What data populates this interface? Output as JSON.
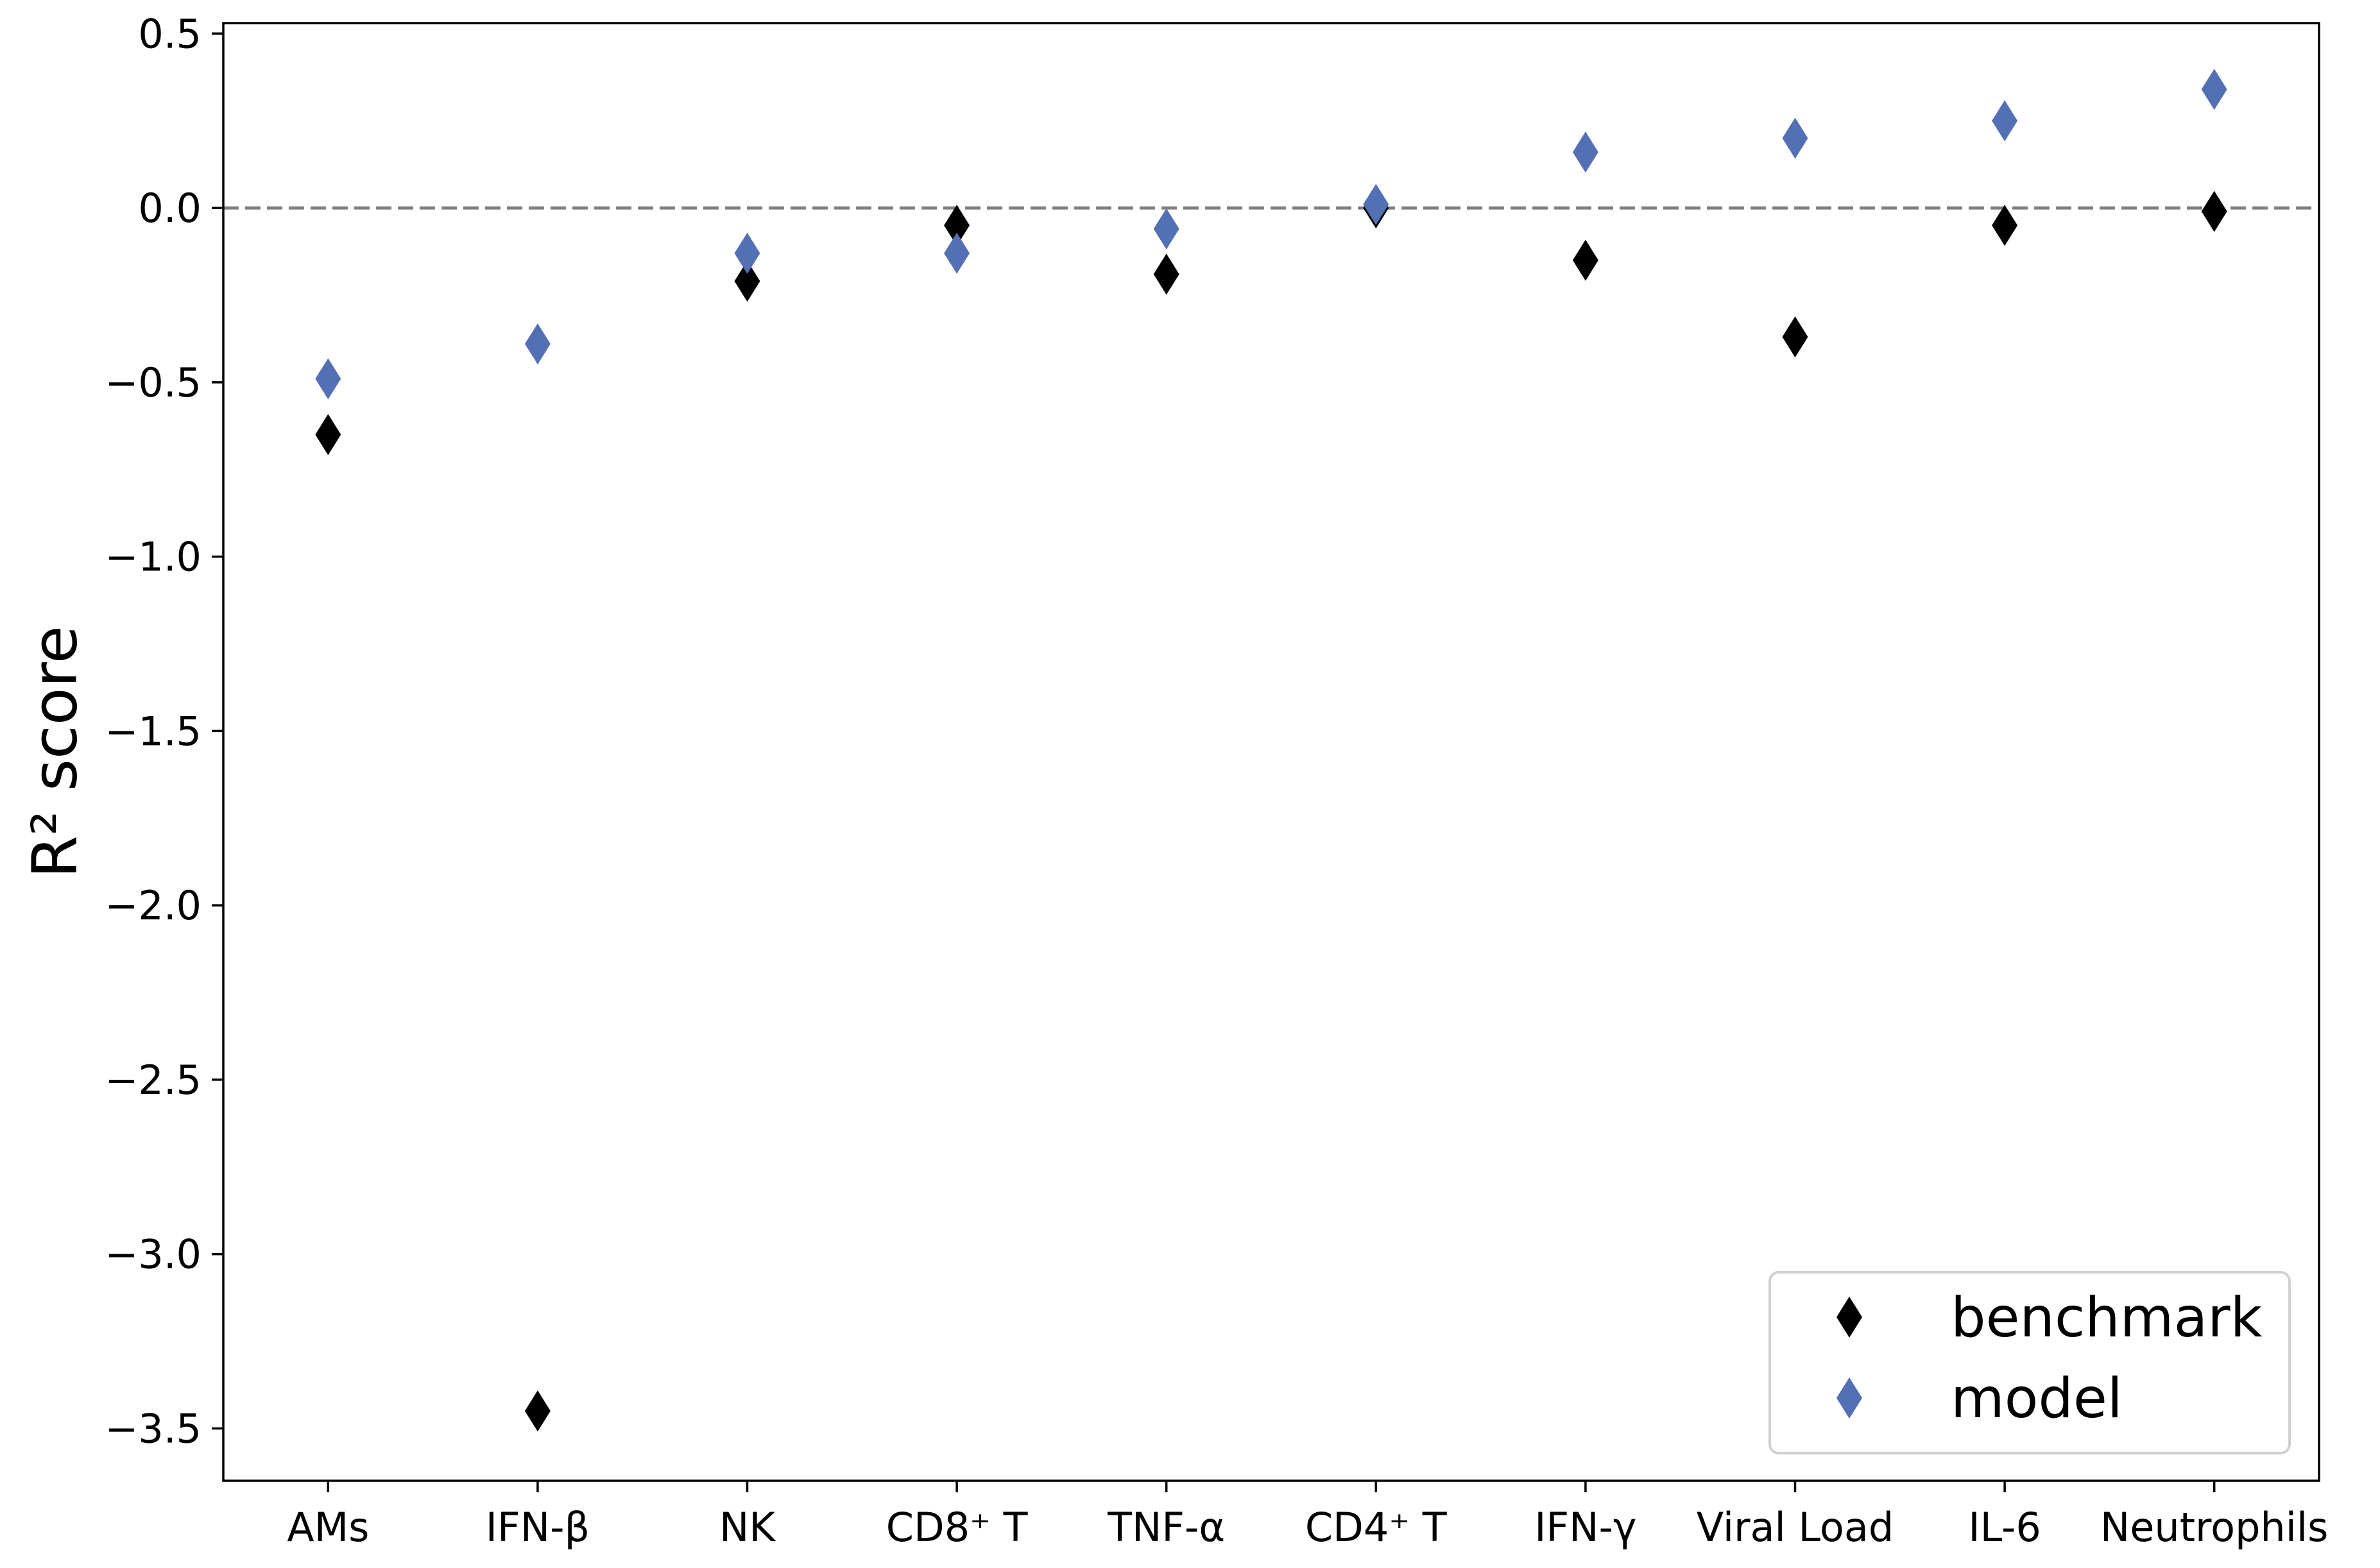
{
  "chart_data": {
    "type": "scatter",
    "categories": [
      "AMs",
      "IFN-β",
      "NK",
      "CD8⁺ T",
      "TNF-α",
      "CD4⁺ T",
      "IFN-γ",
      "Viral Load",
      "IL-6",
      "Neutrophils"
    ],
    "series": [
      {
        "name": "benchmark",
        "color": "#000000",
        "values": [
          -0.65,
          -3.45,
          -0.21,
          -0.05,
          -0.19,
          0.0,
          -0.15,
          -0.37,
          -0.05,
          -0.01
        ]
      },
      {
        "name": "model",
        "color": "#5470b5",
        "values": [
          -0.49,
          -0.39,
          -0.13,
          -0.13,
          -0.06,
          0.01,
          0.16,
          0.2,
          0.25,
          0.34
        ]
      }
    ],
    "ylabel": "R² score",
    "xlabel": "",
    "ylim": [
      -3.65,
      0.53
    ],
    "yticks": [
      "0.5",
      "0.0",
      "−0.5",
      "−1.0",
      "−1.5",
      "−2.0",
      "−2.5",
      "−3.0",
      "−3.5"
    ],
    "ytick_values": [
      0.5,
      0.0,
      -0.5,
      -1.0,
      -1.5,
      -2.0,
      -2.5,
      -3.0,
      -3.5
    ],
    "reference_line": 0.0,
    "marker": "thin-diamond",
    "legend_position": "bottom-right",
    "grid": false
  }
}
